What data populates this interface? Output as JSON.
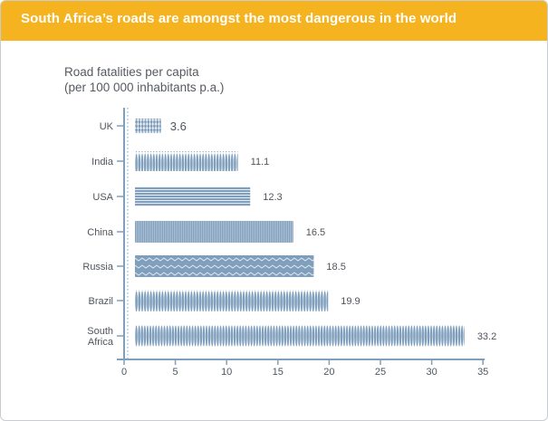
{
  "header": {
    "title": "South Africa’s roads are amongst the most dangerous in the world"
  },
  "chart_data": {
    "type": "bar",
    "orientation": "horizontal",
    "title": "Road fatalities per capita",
    "subtitle": "(per 100 000 inhabitants p.a.)",
    "categories": [
      "UK",
      "India",
      "USA",
      "China",
      "Russia",
      "Brazil",
      "South Africa"
    ],
    "category_labels": [
      [
        "UK"
      ],
      [
        "India"
      ],
      [
        "USA"
      ],
      [
        "China"
      ],
      [
        "Russia"
      ],
      [
        "Brazil"
      ],
      [
        "South",
        "Africa"
      ]
    ],
    "values": [
      3.6,
      11.1,
      12.3,
      16.5,
      18.5,
      19.9,
      33.2
    ],
    "value_labels": [
      "3.6",
      "11.1",
      "12.3",
      "16.5",
      "18.5",
      "19.9",
      "33.2"
    ],
    "xlim": [
      0,
      35
    ],
    "xticks": [
      0,
      5,
      10,
      15,
      20,
      25,
      30,
      35
    ],
    "xlabel": "",
    "ylabel": "",
    "grid": false,
    "bar_color": "#7f9fbd",
    "accent_color": "#f6b320",
    "axis_color": "#7f9fbd"
  }
}
